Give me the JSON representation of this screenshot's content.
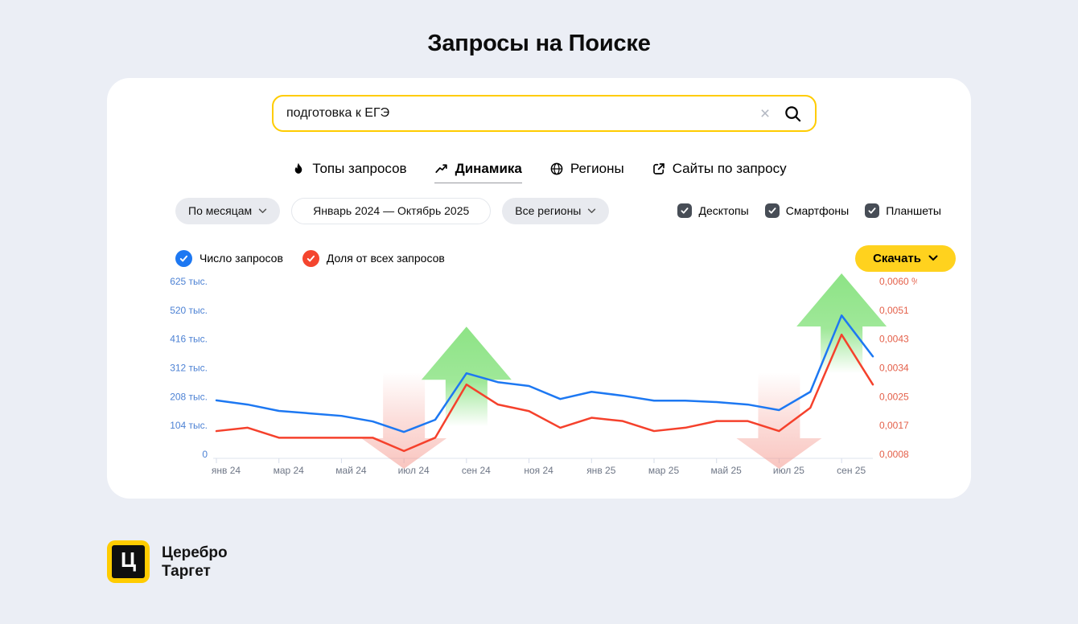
{
  "page": {
    "title": "Запросы на Поиске"
  },
  "search": {
    "value": "подготовка к ЕГЭ"
  },
  "tabs": [
    {
      "label": "Топы запросов",
      "icon": "flame-icon",
      "active": false
    },
    {
      "label": "Динамика",
      "icon": "trend-up-icon",
      "active": true
    },
    {
      "label": "Регионы",
      "icon": "globe-icon",
      "active": false
    },
    {
      "label": "Сайты по запросу",
      "icon": "external-link-icon",
      "active": false
    }
  ],
  "filters": {
    "period": "По месяцам",
    "date_range": "Январь 2024 — Октябрь 2025",
    "region": "Все регионы",
    "devices": [
      {
        "label": "Десктопы",
        "checked": true
      },
      {
        "label": "Смартфоны",
        "checked": true
      },
      {
        "label": "Планшеты",
        "checked": true
      }
    ]
  },
  "legend": [
    {
      "label": "Число запросов",
      "color": "#1D78F2"
    },
    {
      "label": "Доля от всех запросов",
      "color": "#F4452E"
    }
  ],
  "download": {
    "label": "Скачать"
  },
  "chart_data": {
    "type": "line",
    "title": "",
    "x": [
      "янв 24",
      "фев 24",
      "мар 24",
      "апр 24",
      "май 24",
      "июн 24",
      "июл 24",
      "авг 24",
      "сен 24",
      "окт 24",
      "ноя 24",
      "дек 24",
      "янв 25",
      "фев 25",
      "мар 25",
      "апр 25",
      "май 25",
      "июн 25",
      "июл 25",
      "авг 25",
      "сен 25",
      "окт 25"
    ],
    "x_tick_labels": [
      "янв 24",
      "мар 24",
      "май 24",
      "июл 24",
      "сен 24",
      "ноя 24",
      "янв 25",
      "мар 25",
      "май 25",
      "июл 25",
      "сен 25"
    ],
    "series": [
      {
        "name": "Число запросов",
        "axis": "left",
        "unit": "тыс.",
        "color": "#1D78F2",
        "values": [
          195,
          180,
          157,
          148,
          139,
          119,
          81,
          125,
          293,
          261,
          247,
          200,
          226,
          212,
          194,
          194,
          189,
          180,
          160,
          226,
          502,
          354
        ]
      },
      {
        "name": "Доля от всех запросов",
        "axis": "right",
        "unit": "%",
        "color": "#F5412C",
        "values": [
          0.0015,
          0.0016,
          0.0013,
          0.0013,
          0.0013,
          0.0013,
          0.0009,
          0.0013,
          0.0029,
          0.0023,
          0.0021,
          0.0016,
          0.0019,
          0.0018,
          0.0015,
          0.0016,
          0.0018,
          0.0018,
          0.0015,
          0.0022,
          0.0044,
          0.0029
        ]
      }
    ],
    "left_axis": {
      "ticks": [
        "625 тыс.",
        "520 тыс.",
        "416 тыс.",
        "312 тыс.",
        "208 тыс.",
        "104 тыс.",
        "0"
      ],
      "max": 625,
      "min": 0,
      "color": "#4D82D4"
    },
    "right_axis": {
      "ticks": [
        "0,0060 %",
        "0,0051",
        "0,0043",
        "0,0034",
        "0,0025",
        "0,0017",
        "0,0008"
      ],
      "max": 0.006,
      "min": 0.0008,
      "color": "#E4604A"
    },
    "annotations": [
      {
        "direction": "down",
        "x_index": 6,
        "color": "#F4968C"
      },
      {
        "direction": "up",
        "x_index": 8,
        "color": "#87E27F"
      },
      {
        "direction": "down",
        "x_index": 18,
        "color": "#F4968C"
      },
      {
        "direction": "up",
        "x_index": 20,
        "color": "#87E27F"
      }
    ],
    "grid": false,
    "legend_position": "top-left"
  },
  "logo": {
    "letter": "Ц",
    "line1": "Церебро",
    "line2": "Таргет"
  }
}
